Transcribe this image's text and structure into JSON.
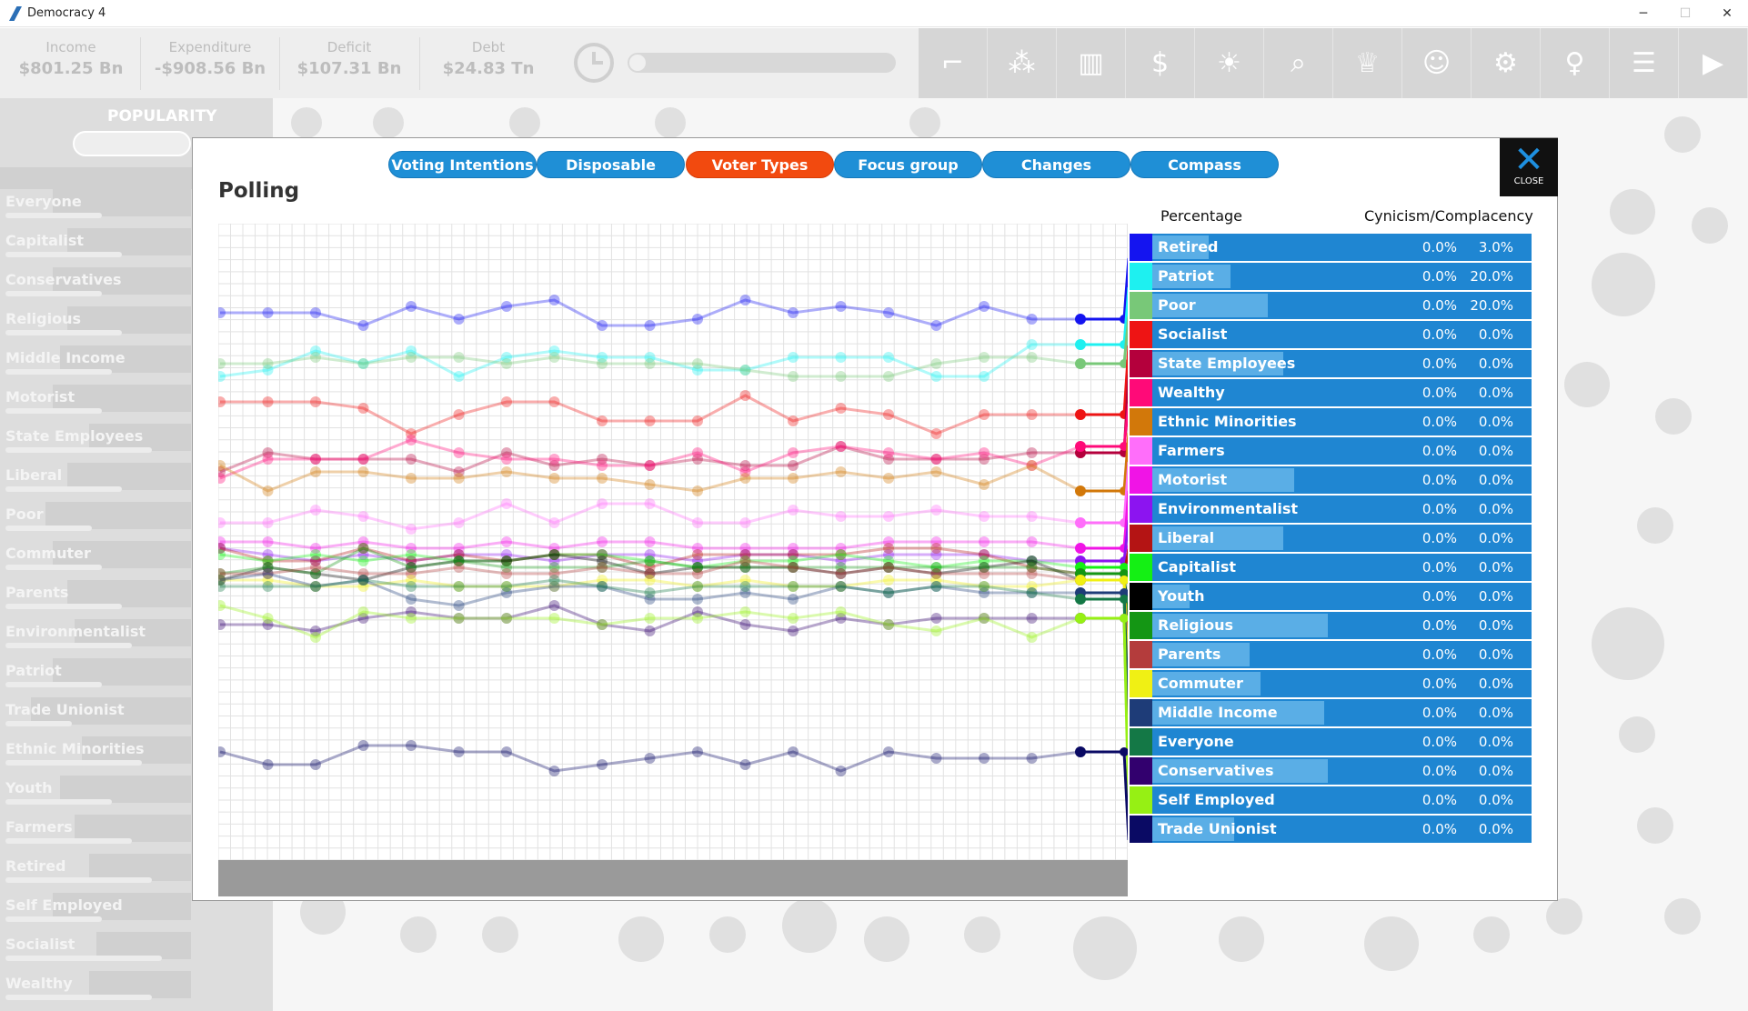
{
  "window": {
    "title": "Democracy 4",
    "controls": [
      "─",
      "☐",
      "✕"
    ]
  },
  "stats": [
    {
      "label": "Income",
      "value": "$801.25 Bn"
    },
    {
      "label": "Expenditure",
      "value": "-$908.56 Bn"
    },
    {
      "label": "Deficit",
      "value": "$107.31 Bn"
    },
    {
      "label": "Debt",
      "value": "$24.83 Tn"
    }
  ],
  "toolbar": {
    "icons": [
      "gun-icon",
      "people-cluster-icon",
      "bar-chart-icon",
      "dollar-icon",
      "lightbulb-icon",
      "search-icon",
      "trophy-icon",
      "group-icon",
      "gear-icon",
      "ribbon-icon",
      "document-icon",
      "play-icon"
    ]
  },
  "popularity": {
    "title": "POPULARITY",
    "groups": [
      {
        "name": "Everyone",
        "level": 0.3
      },
      {
        "name": "Capitalist",
        "level": 0.4
      },
      {
        "name": "Conservatives",
        "level": 0.3
      },
      {
        "name": "Religious",
        "level": 0.4
      },
      {
        "name": "Middle Income",
        "level": 0.35
      },
      {
        "name": "Motorist",
        "level": 0.3
      },
      {
        "name": "State Employees",
        "level": 0.55
      },
      {
        "name": "Liberal",
        "level": 0.4
      },
      {
        "name": "Poor",
        "level": 0.25
      },
      {
        "name": "Commuter",
        "level": 0.3
      },
      {
        "name": "Parents",
        "level": 0.4
      },
      {
        "name": "Environmentalist",
        "level": 0.45
      },
      {
        "name": "Patriot",
        "level": 0.3
      },
      {
        "name": "Trade Unionist",
        "level": 0.15
      },
      {
        "name": "Ethnic Minorities",
        "level": 0.5
      },
      {
        "name": "Youth",
        "level": 0.35
      },
      {
        "name": "Farmers",
        "level": 0.45
      },
      {
        "name": "Retired",
        "level": 0.55
      },
      {
        "name": "Self Employed",
        "level": 0.3
      },
      {
        "name": "Socialist",
        "level": 0.6
      },
      {
        "name": "Wealthy",
        "level": 0.55
      }
    ]
  },
  "dialog": {
    "title": "Polling",
    "tabs": [
      {
        "label": "Voting Intentions",
        "active": false
      },
      {
        "label": "Disposable Income",
        "active": false
      },
      {
        "label": "Voter Types",
        "active": true
      },
      {
        "label": "Focus group",
        "active": false
      },
      {
        "label": "Changes",
        "active": false
      },
      {
        "label": "Compass",
        "active": false
      }
    ],
    "close_label": "CLOSE",
    "headers": {
      "percentage": "Percentage",
      "cynicism": "Cynicism/Complacency"
    }
  },
  "voter_types": [
    {
      "name": "Retired",
      "color": "#1414f0",
      "share": 0.15,
      "percentage": "0.0%",
      "cynicism": "3.0%"
    },
    {
      "name": "Patriot",
      "color": "#1ef0f0",
      "share": 0.21,
      "percentage": "0.0%",
      "cynicism": "20.0%"
    },
    {
      "name": "Poor",
      "color": "#78c878",
      "share": 0.31,
      "percentage": "0.0%",
      "cynicism": "20.0%"
    },
    {
      "name": "Socialist",
      "color": "#ee1414",
      "share": 0.0,
      "percentage": "0.0%",
      "cynicism": "0.0%"
    },
    {
      "name": "State Employees",
      "color": "#b4003c",
      "share": 0.35,
      "percentage": "0.0%",
      "cynicism": "0.0%"
    },
    {
      "name": "Wealthy",
      "color": "#ff0a78",
      "share": 0.0,
      "percentage": "0.0%",
      "cynicism": "0.0%"
    },
    {
      "name": "Ethnic Minorities",
      "color": "#d2780a",
      "share": 0.0,
      "percentage": "0.0%",
      "cynicism": "0.0%"
    },
    {
      "name": "Farmers",
      "color": "#ff6efa",
      "share": 0.0,
      "percentage": "0.0%",
      "cynicism": "0.0%"
    },
    {
      "name": "Motorist",
      "color": "#f014e6",
      "share": 0.38,
      "percentage": "0.0%",
      "cynicism": "0.0%"
    },
    {
      "name": "Environmentalist",
      "color": "#8c14f0",
      "share": 0.0,
      "percentage": "0.0%",
      "cynicism": "0.0%"
    },
    {
      "name": "Liberal",
      "color": "#b41414",
      "share": 0.35,
      "percentage": "0.0%",
      "cynicism": "0.0%"
    },
    {
      "name": "Capitalist",
      "color": "#14f014",
      "share": 0.0,
      "percentage": "0.0%",
      "cynicism": "0.0%"
    },
    {
      "name": "Youth",
      "color": "#000000",
      "share": 0.1,
      "percentage": "0.0%",
      "cynicism": "0.0%"
    },
    {
      "name": "Religious",
      "color": "#149614",
      "share": 0.47,
      "percentage": "0.0%",
      "cynicism": "0.0%"
    },
    {
      "name": "Parents",
      "color": "#b43c3c",
      "share": 0.26,
      "percentage": "0.0%",
      "cynicism": "0.0%"
    },
    {
      "name": "Commuter",
      "color": "#f0f014",
      "share": 0.29,
      "percentage": "0.0%",
      "cynicism": "0.0%"
    },
    {
      "name": "Middle Income",
      "color": "#1e3c78",
      "share": 0.46,
      "percentage": "0.0%",
      "cynicism": "0.0%"
    },
    {
      "name": "Everyone",
      "color": "#147846",
      "share": 0.0,
      "percentage": "0.0%",
      "cynicism": "0.0%"
    },
    {
      "name": "Conservatives",
      "color": "#32006e",
      "share": 0.47,
      "percentage": "0.0%",
      "cynicism": "0.0%"
    },
    {
      "name": "Self Employed",
      "color": "#96f014",
      "share": 0.0,
      "percentage": "0.0%",
      "cynicism": "0.0%"
    },
    {
      "name": "Trade Unionist",
      "color": "#0a0a64",
      "share": 0.22,
      "percentage": "0.0%",
      "cynicism": "0.0%"
    }
  ],
  "chart_data": {
    "type": "line",
    "title": "",
    "xlabel": "",
    "ylabel": "",
    "grid": true,
    "series": [
      {
        "name": "Retired",
        "values": [
          0.86,
          0.86,
          0.86,
          0.84,
          0.87,
          0.85,
          0.87,
          0.88,
          0.84,
          0.84,
          0.85,
          0.88,
          0.86,
          0.87,
          0.86,
          0.84,
          0.87,
          0.85,
          0.85
        ]
      },
      {
        "name": "Patriot",
        "values": [
          0.76,
          0.77,
          0.8,
          0.78,
          0.8,
          0.76,
          0.79,
          0.8,
          0.79,
          0.79,
          0.77,
          0.77,
          0.79,
          0.79,
          0.79,
          0.76,
          0.76,
          0.81,
          0.81
        ]
      },
      {
        "name": "Poor",
        "values": [
          0.78,
          0.78,
          0.79,
          0.78,
          0.79,
          0.79,
          0.78,
          0.79,
          0.78,
          0.78,
          0.78,
          0.77,
          0.76,
          0.76,
          0.76,
          0.78,
          0.79,
          0.79,
          0.78
        ]
      },
      {
        "name": "Socialist",
        "values": [
          0.72,
          0.72,
          0.72,
          0.71,
          0.67,
          0.7,
          0.72,
          0.72,
          0.69,
          0.69,
          0.69,
          0.73,
          0.69,
          0.71,
          0.7,
          0.67,
          0.7,
          0.7,
          0.7
        ]
      },
      {
        "name": "State Employees",
        "values": [
          0.61,
          0.64,
          0.63,
          0.63,
          0.63,
          0.61,
          0.64,
          0.62,
          0.63,
          0.62,
          0.63,
          0.62,
          0.62,
          0.65,
          0.63,
          0.63,
          0.63,
          0.64,
          0.64
        ]
      },
      {
        "name": "Wealthy",
        "values": [
          0.6,
          0.63,
          0.63,
          0.63,
          0.66,
          0.64,
          0.63,
          0.63,
          0.62,
          0.62,
          0.64,
          0.61,
          0.64,
          0.65,
          0.64,
          0.63,
          0.64,
          0.62,
          0.65
        ]
      },
      {
        "name": "Ethnic Minorities",
        "values": [
          0.62,
          0.58,
          0.61,
          0.61,
          0.6,
          0.6,
          0.61,
          0.6,
          0.6,
          0.59,
          0.58,
          0.6,
          0.6,
          0.61,
          0.6,
          0.61,
          0.59,
          0.62,
          0.58
        ]
      },
      {
        "name": "Farmers",
        "values": [
          0.53,
          0.53,
          0.55,
          0.54,
          0.52,
          0.53,
          0.56,
          0.53,
          0.56,
          0.56,
          0.53,
          0.53,
          0.55,
          0.54,
          0.54,
          0.55,
          0.54,
          0.54,
          0.53
        ]
      },
      {
        "name": "Motorist",
        "values": [
          0.5,
          0.5,
          0.49,
          0.5,
          0.49,
          0.49,
          0.5,
          0.49,
          0.5,
          0.5,
          0.49,
          0.49,
          0.49,
          0.49,
          0.5,
          0.5,
          0.5,
          0.5,
          0.49
        ]
      },
      {
        "name": "Environmentalist",
        "values": [
          0.49,
          0.48,
          0.47,
          0.48,
          0.47,
          0.48,
          0.48,
          0.47,
          0.48,
          0.48,
          0.47,
          0.48,
          0.48,
          0.47,
          0.48,
          0.48,
          0.48,
          0.47,
          0.47
        ]
      },
      {
        "name": "Liberal",
        "values": [
          0.49,
          0.47,
          0.47,
          0.49,
          0.47,
          0.48,
          0.47,
          0.48,
          0.48,
          0.46,
          0.48,
          0.48,
          0.48,
          0.48,
          0.49,
          0.49,
          0.48,
          0.46,
          0.45
        ]
      },
      {
        "name": "Capitalist",
        "values": [
          0.48,
          0.47,
          0.48,
          0.47,
          0.48,
          0.47,
          0.47,
          0.48,
          0.48,
          0.47,
          0.46,
          0.47,
          0.47,
          0.48,
          0.47,
          0.46,
          0.47,
          0.47,
          0.46
        ]
      },
      {
        "name": "Youth",
        "values": [
          0.44,
          0.46,
          0.45,
          0.44,
          0.46,
          0.47,
          0.47,
          0.48,
          0.47,
          0.45,
          0.46,
          0.46,
          0.46,
          0.45,
          0.46,
          0.45,
          0.46,
          0.47,
          0.44
        ]
      },
      {
        "name": "Religious",
        "values": [
          0.45,
          0.46,
          0.45,
          0.49,
          0.46,
          0.47,
          0.46,
          0.46,
          0.46,
          0.47,
          0.46,
          0.46,
          0.46,
          0.46,
          0.46,
          0.46,
          0.46,
          0.46,
          0.45
        ]
      },
      {
        "name": "Parents",
        "values": [
          0.45,
          0.45,
          0.46,
          0.45,
          0.45,
          0.46,
          0.45,
          0.45,
          0.46,
          0.45,
          0.45,
          0.47,
          0.46,
          0.45,
          0.46,
          0.45,
          0.45,
          0.45,
          0.44
        ]
      },
      {
        "name": "Commuter",
        "values": [
          0.44,
          0.44,
          0.43,
          0.43,
          0.44,
          0.43,
          0.43,
          0.43,
          0.44,
          0.44,
          0.43,
          0.44,
          0.43,
          0.43,
          0.44,
          0.44,
          0.43,
          0.43,
          0.44
        ]
      },
      {
        "name": "Middle Income",
        "values": [
          0.44,
          0.45,
          0.43,
          0.44,
          0.41,
          0.4,
          0.42,
          0.43,
          0.43,
          0.41,
          0.41,
          0.42,
          0.41,
          0.43,
          0.42,
          0.43,
          0.42,
          0.42,
          0.42
        ]
      },
      {
        "name": "Everyone",
        "values": [
          0.43,
          0.43,
          0.43,
          0.44,
          0.43,
          0.43,
          0.43,
          0.44,
          0.43,
          0.42,
          0.43,
          0.43,
          0.43,
          0.43,
          0.42,
          0.43,
          0.43,
          0.42,
          0.41
        ]
      },
      {
        "name": "Conservatives",
        "values": [
          0.37,
          0.37,
          0.36,
          0.38,
          0.39,
          0.38,
          0.38,
          0.4,
          0.37,
          0.36,
          0.39,
          0.37,
          0.36,
          0.38,
          0.37,
          0.38,
          0.38,
          0.38,
          0.38
        ]
      },
      {
        "name": "Self Employed",
        "values": [
          0.4,
          0.38,
          0.35,
          0.39,
          0.38,
          0.38,
          0.38,
          0.38,
          0.37,
          0.38,
          0.38,
          0.39,
          0.38,
          0.39,
          0.37,
          0.36,
          0.38,
          0.35,
          0.38
        ]
      },
      {
        "name": "Trade Unionist",
        "values": [
          0.17,
          0.15,
          0.15,
          0.18,
          0.18,
          0.17,
          0.17,
          0.14,
          0.15,
          0.16,
          0.17,
          0.15,
          0.17,
          0.14,
          0.17,
          0.16,
          0.16,
          0.16,
          0.17
        ]
      }
    ]
  }
}
